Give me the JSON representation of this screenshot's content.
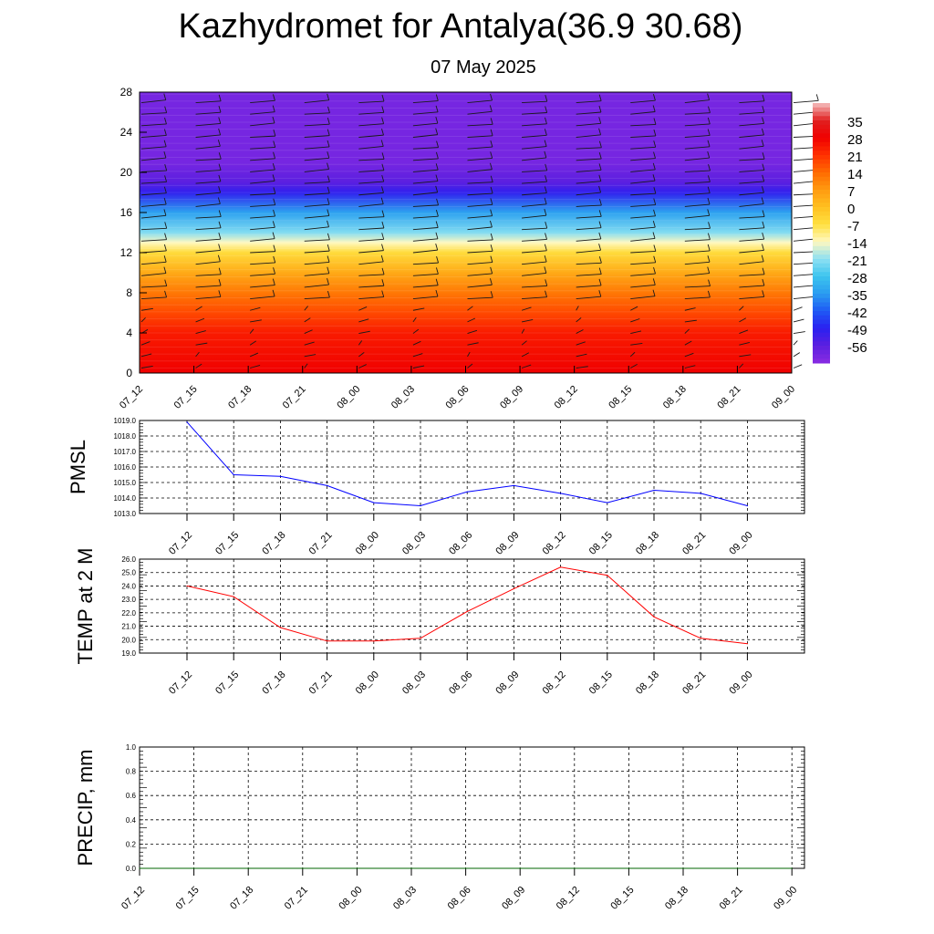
{
  "title": "Kazhydromet for Antalya(36.9 30.68)",
  "subtitle": "07 May 2025",
  "colors": {
    "pmsl_line": "#0000ff",
    "temp_line": "#ff0000",
    "precip_line": "#006400",
    "grid": "#000000"
  },
  "chart_data": [
    {
      "type": "heatmap",
      "title": "",
      "x_ticks": [
        "07_12",
        "07_15",
        "07_18",
        "07_21",
        "08_00",
        "08_03",
        "08_06",
        "08_09",
        "08_12",
        "08_15",
        "08_18",
        "08_21",
        "09_00"
      ],
      "y_ticks": [
        "0",
        "4",
        "8",
        "12",
        "16",
        "20",
        "24",
        "28"
      ],
      "ylim": [
        0,
        28
      ],
      "colorbar_labels": [
        "35",
        "28",
        "21",
        "14",
        "7",
        "0",
        "-7",
        "-14",
        "-21",
        "-28",
        "-35",
        "-42",
        "-49",
        "-56"
      ],
      "colorbar_range": [
        -63,
        42
      ],
      "value_layers": [
        {
          "level": 0,
          "value": 28
        },
        {
          "level": 4,
          "value": 24
        },
        {
          "level": 6,
          "value": 18
        },
        {
          "level": 8,
          "value": 12
        },
        {
          "level": 10,
          "value": 4
        },
        {
          "level": 12,
          "value": -6
        },
        {
          "level": 13,
          "value": -14
        },
        {
          "level": 14,
          "value": -22
        },
        {
          "level": 16,
          "value": -34
        },
        {
          "level": 18,
          "value": -50
        },
        {
          "level": 19,
          "value": -56
        },
        {
          "level": 21,
          "value": -60
        },
        {
          "level": 24,
          "value": -60
        },
        {
          "level": 28,
          "value": -60
        }
      ]
    },
    {
      "type": "line",
      "ylabel": "PMSL",
      "x": [
        "07_12",
        "07_15",
        "07_18",
        "07_21",
        "08_00",
        "08_03",
        "08_06",
        "08_09",
        "08_12",
        "08_15",
        "08_18",
        "08_21",
        "09_00"
      ],
      "y_ticks": [
        "1013.0",
        "1014.0",
        "1015.0",
        "1016.0",
        "1017.0",
        "1018.0",
        "1019.0"
      ],
      "ylim": [
        1013,
        1019
      ],
      "values": [
        1018.9,
        1015.5,
        1015.4,
        1014.8,
        1013.7,
        1013.5,
        1014.4,
        1014.8,
        1014.3,
        1013.7,
        1014.5,
        1014.3,
        1013.5
      ],
      "grid": true
    },
    {
      "type": "line",
      "ylabel": "TEMP at 2 M",
      "x": [
        "07_12",
        "07_15",
        "07_18",
        "07_21",
        "08_00",
        "08_03",
        "08_06",
        "08_09",
        "08_12",
        "08_15",
        "08_18",
        "08_21",
        "09_00"
      ],
      "y_ticks": [
        "19.0",
        "20.0",
        "21.0",
        "22.0",
        "23.0",
        "24.0",
        "25.0",
        "26.0"
      ],
      "ylim": [
        19,
        26
      ],
      "values": [
        24.0,
        23.2,
        20.9,
        19.9,
        19.9,
        20.1,
        22.1,
        23.8,
        25.4,
        24.8,
        21.7,
        20.1,
        19.7
      ],
      "grid": true
    },
    {
      "type": "line",
      "ylabel": "PRECIP, mm",
      "x": [
        "07_12",
        "07_15",
        "07_18",
        "07_21",
        "08_00",
        "08_03",
        "08_06",
        "08_09",
        "08_12",
        "08_15",
        "08_18",
        "08_21",
        "09_00"
      ],
      "y_ticks": [
        "0.0",
        "0.2",
        "0.4",
        "0.6",
        "0.8",
        "1.0"
      ],
      "ylim": [
        0,
        1
      ],
      "values": [
        0,
        0,
        0,
        0,
        0,
        0,
        0,
        0,
        0,
        0,
        0,
        0,
        0
      ],
      "grid": true
    }
  ]
}
